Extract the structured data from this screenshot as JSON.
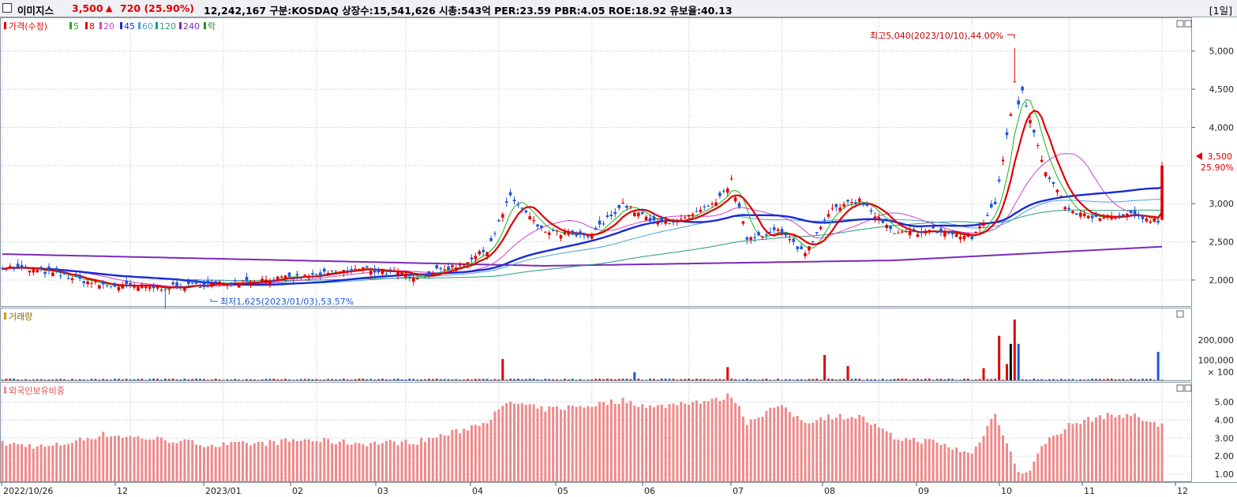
{
  "header": {
    "name": "이미지스",
    "price": "3,500",
    "arrow": "▲",
    "change": "720",
    "change_pct": "(25.90%)",
    "stats": "12,242,167  구분:KOSDAQ 상장수:15,541,626 시총:543억 PER:23.59 PBR:4.05 ROE:18.92 유보율:40.13",
    "period": "[1일]"
  },
  "colors": {
    "up": "#e00000",
    "down": "#1a57d6",
    "ma5": "#22aa22",
    "ma8": "#e00000",
    "ma20": "#cc44cc",
    "ma45": "#1a2ad6",
    "ma60": "#4aa0d8",
    "ma120": "#2a9a78",
    "ma240": "#7a2ab8",
    "grid": "#b8c2cc",
    "foreign": "#ef8a8a"
  },
  "price_panel": {
    "legend": [
      "가격(수정)",
      "5",
      "8",
      "20",
      "45",
      "60",
      "120",
      "240",
      "락"
    ],
    "y_ticks": [
      "5,000",
      "4,500",
      "4,000",
      "3,500",
      "3,000",
      "2,500",
      "2,000"
    ],
    "current_price": "3,500",
    "current_pct": "25.90%",
    "high_label": "최고5,040(2023/10/10),44.00%",
    "low_label": "최저1,625(2023/01/03),53.57%"
  },
  "volume_panel": {
    "title": "거래량",
    "y_ticks": [
      "200,000",
      "100,000",
      "× 100"
    ]
  },
  "foreign_panel": {
    "title": "외국인보유비중",
    "y_ticks": [
      "5.00",
      "4.00",
      "3.00",
      "2.00",
      "1.00"
    ]
  },
  "x_axis": {
    "labels": [
      "2022/10/26",
      "12",
      "2023/01",
      "02",
      "03",
      "04",
      "05",
      "06",
      "07",
      "08",
      "09",
      "10",
      "11",
      "12"
    ]
  },
  "chart_data": {
    "type": "candlestick",
    "title": "이미지스",
    "start_date": "2022/10/26",
    "end_date": "2023/11/24",
    "x_tick_labels": [
      "2022/10/26",
      "12",
      "2023/01",
      "02",
      "03",
      "04",
      "05",
      "06",
      "07",
      "08",
      "09",
      "10",
      "11",
      "12"
    ],
    "price_ylim": [
      1700,
      5400
    ],
    "anchors": [
      {
        "i": 0,
        "p": 2180,
        "f": 2.7
      },
      {
        "i": 12,
        "p": 2100,
        "f": 2.5
      },
      {
        "i": 26,
        "p": 1930,
        "f": 3.2
      },
      {
        "i": 42,
        "p": 1900,
        "f": 2.9
      },
      {
        "i": 55,
        "p": 1950,
        "f": 2.6
      },
      {
        "i": 66,
        "p": 2000,
        "f": 2.7
      },
      {
        "i": 78,
        "p": 2040,
        "f": 2.9
      },
      {
        "i": 93,
        "p": 2150,
        "f": 2.7
      },
      {
        "i": 107,
        "p": 2050,
        "f": 2.8
      },
      {
        "i": 118,
        "p": 2200,
        "f": 3.4
      },
      {
        "i": 125,
        "p": 2400,
        "f": 4.0
      },
      {
        "i": 131,
        "p": 3100,
        "f": 5.0
      },
      {
        "i": 139,
        "p": 2650,
        "f": 4.6
      },
      {
        "i": 151,
        "p": 2550,
        "f": 4.8
      },
      {
        "i": 160,
        "p": 3000,
        "f": 5.1
      },
      {
        "i": 168,
        "p": 2750,
        "f": 4.7
      },
      {
        "i": 176,
        "p": 2800,
        "f": 5.0
      },
      {
        "i": 184,
        "p": 3000,
        "f": 5.1
      },
      {
        "i": 188,
        "p": 3300,
        "f": 5.4
      },
      {
        "i": 192,
        "p": 2550,
        "f": 3.9
      },
      {
        "i": 200,
        "p": 2650,
        "f": 4.8
      },
      {
        "i": 207,
        "p": 2350,
        "f": 3.9
      },
      {
        "i": 213,
        "p": 2900,
        "f": 4.2
      },
      {
        "i": 221,
        "p": 3050,
        "f": 4.2
      },
      {
        "i": 230,
        "p": 2600,
        "f": 3.0
      },
      {
        "i": 240,
        "p": 2650,
        "f": 2.8
      },
      {
        "i": 250,
        "p": 2550,
        "f": 2.1
      },
      {
        "i": 256,
        "p": 3000,
        "f": 4.4
      },
      {
        "i": 260,
        "p": 4200,
        "f": 2.2
      },
      {
        "i": 262,
        "p": 4700,
        "f": 1.0
      },
      {
        "i": 265,
        "p": 4100,
        "f": 1.3
      },
      {
        "i": 269,
        "p": 3400,
        "f": 2.8
      },
      {
        "i": 275,
        "p": 2900,
        "f": 3.7
      },
      {
        "i": 283,
        "p": 2800,
        "f": 4.2
      },
      {
        "i": 291,
        "p": 2850,
        "f": 4.3
      },
      {
        "i": 298,
        "p": 2780,
        "f": 3.7
      },
      {
        "i": 299,
        "p": 3500,
        "f": 3.8
      }
    ],
    "series": [
      {
        "name": "MA5"
      },
      {
        "name": "MA8"
      },
      {
        "name": "MA20"
      },
      {
        "name": "MA45"
      },
      {
        "name": "MA60"
      },
      {
        "name": "MA120"
      },
      {
        "name": "MA240"
      }
    ],
    "high": {
      "date": "2023/10/10",
      "value": 5040
    },
    "low": {
      "date": "2023/01/03",
      "value": 1625
    },
    "last": {
      "value": 3500,
      "change_pct": 25.9
    },
    "volume_spikes": [
      {
        "i": 129,
        "v": 105000
      },
      {
        "i": 163,
        "v": 40000
      },
      {
        "i": 187,
        "v": 65000
      },
      {
        "i": 212,
        "v": 125000
      },
      {
        "i": 218,
        "v": 70000
      },
      {
        "i": 253,
        "v": 60000
      },
      {
        "i": 257,
        "v": 220000
      },
      {
        "i": 259,
        "v": 80000
      },
      {
        "i": 260,
        "v": 180000
      },
      {
        "i": 261,
        "v": 300000
      },
      {
        "i": 262,
        "v": 180000
      },
      {
        "i": 298,
        "v": 140000
      }
    ],
    "volume_ylim": [
      0,
      320000
    ],
    "foreign_ylim": [
      0.6,
      5.6
    ]
  }
}
